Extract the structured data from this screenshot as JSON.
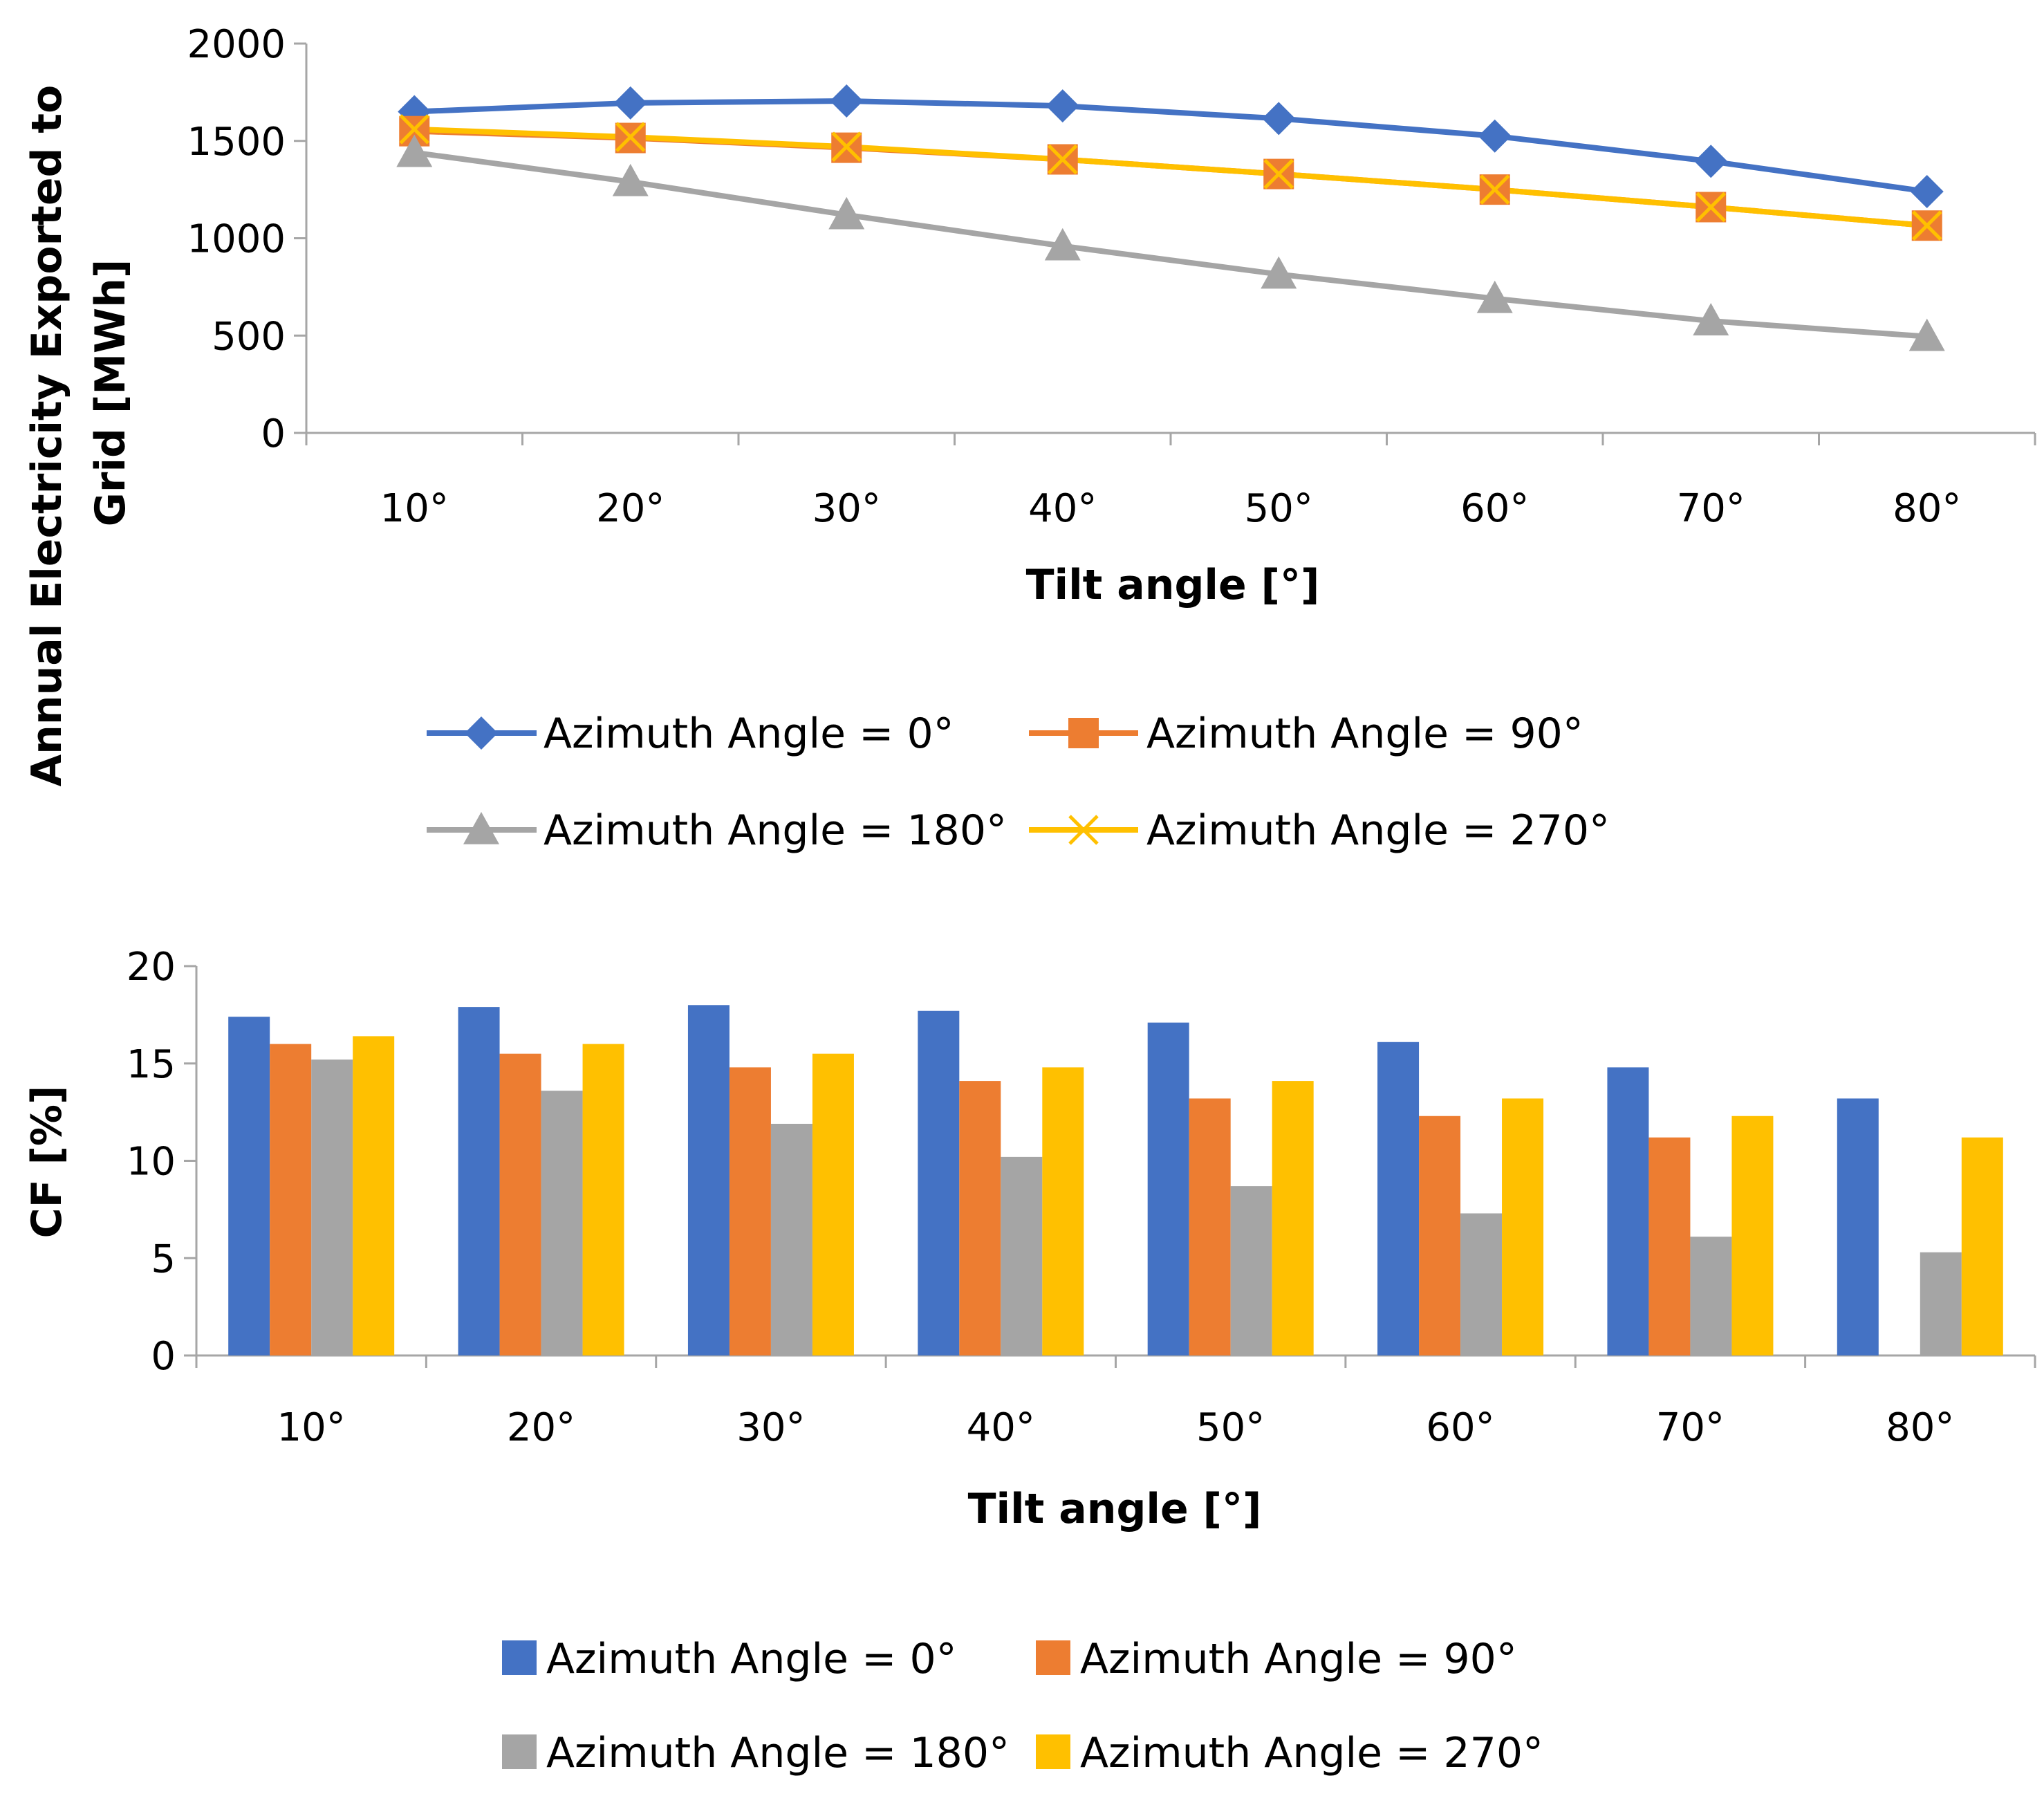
{
  "colors": {
    "blue": "#4472C4",
    "orange": "#ED7D31",
    "gray": "#A5A5A5",
    "yellow": "#FFC000",
    "axis": "#A6A6A6"
  },
  "chart_data": [
    {
      "type": "line",
      "title": "",
      "xlabel": "Tilt angle [°]",
      "ylabel_line1": "Annual Electricity Exported to",
      "ylabel_line2": "Grid [MWh]",
      "categories": [
        "10°",
        "20°",
        "30°",
        "40°",
        "50°",
        "60°",
        "70°",
        "80°"
      ],
      "ylim": [
        0,
        2000
      ],
      "yticks": [
        "0",
        "500",
        "1000",
        "1500",
        "2000"
      ],
      "legend_position": "bottom",
      "series": [
        {
          "name": "Azimuth Angle = 0°",
          "color": "#4472C4",
          "marker": "diamond",
          "values": [
            1650,
            1695,
            1705,
            1680,
            1615,
            1525,
            1395,
            1240
          ]
        },
        {
          "name": "Azimuth Angle = 90°",
          "color": "#ED7D31",
          "marker": "square",
          "values": [
            1550,
            1515,
            1465,
            1405,
            1330,
            1250,
            1160,
            1065
          ]
        },
        {
          "name": "Azimuth Angle = 180°",
          "color": "#A5A5A5",
          "marker": "triangle",
          "values": [
            1440,
            1290,
            1120,
            960,
            815,
            690,
            575,
            495
          ]
        },
        {
          "name": "Azimuth Angle = 270°",
          "color": "#FFC000",
          "marker": "x",
          "values": [
            1560,
            1520,
            1470,
            1405,
            1330,
            1250,
            1160,
            1065
          ]
        }
      ]
    },
    {
      "type": "bar",
      "title": "",
      "xlabel": "Tilt angle [°]",
      "ylabel": "CF [%]",
      "categories": [
        "10°",
        "20°",
        "30°",
        "40°",
        "50°",
        "60°",
        "70°",
        "80°"
      ],
      "ylim": [
        0,
        20
      ],
      "yticks": [
        "0",
        "5",
        "10",
        "15",
        "20"
      ],
      "legend_position": "bottom",
      "series": [
        {
          "name": "Azimuth Angle = 0°",
          "color": "#4472C4",
          "values": [
            17.4,
            17.9,
            18.0,
            17.7,
            17.1,
            16.1,
            14.8,
            13.2
          ]
        },
        {
          "name": "Azimuth Angle = 90°",
          "color": "#ED7D31",
          "values": [
            16.0,
            15.5,
            14.8,
            14.1,
            13.2,
            12.3,
            11.2,
            0
          ]
        },
        {
          "name": "Azimuth Angle = 180°",
          "color": "#A5A5A5",
          "values": [
            15.2,
            13.6,
            11.9,
            10.2,
            8.7,
            7.3,
            6.1,
            5.3
          ]
        },
        {
          "name": "Azimuth Angle = 270°",
          "color": "#FFC000",
          "values": [
            16.4,
            16.0,
            15.5,
            14.8,
            14.1,
            13.2,
            12.3,
            11.2
          ]
        }
      ]
    }
  ]
}
